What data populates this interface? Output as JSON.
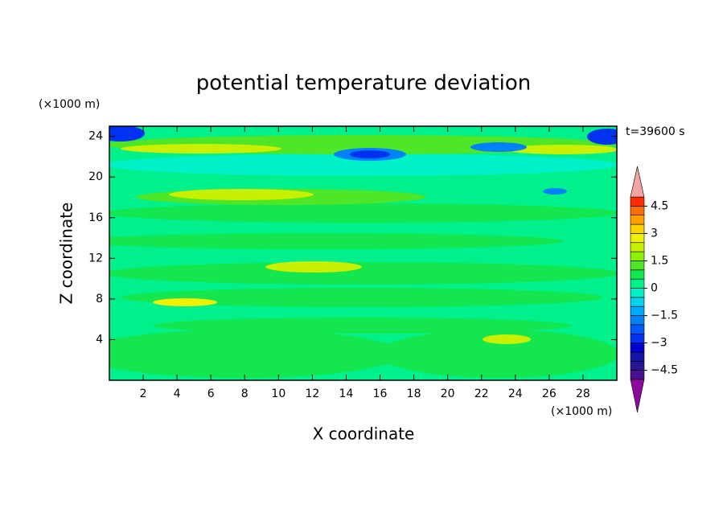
{
  "chart_data": {
    "type": "contour",
    "title": "potential temperature deviation",
    "x_label": "X coordinate",
    "y_label": "Z coordinate",
    "x_unit": "(×1000 m)",
    "y_unit": "(×1000 m)",
    "annotation": "t=39600 s",
    "xlim": [
      0,
      30
    ],
    "xticks": [
      2,
      4,
      6,
      8,
      10,
      12,
      14,
      16,
      18,
      20,
      22,
      24,
      26,
      28
    ],
    "ylim": [
      0,
      25
    ],
    "yticks": [
      4,
      8,
      12,
      16,
      20,
      24
    ],
    "colorbar": {
      "levels": [
        -5,
        -4.5,
        -4,
        -3.5,
        -3,
        -2.5,
        -2,
        -1.5,
        -1,
        -0.5,
        0,
        0.5,
        1,
        1.5,
        2,
        2.5,
        3,
        3.5,
        4,
        4.5,
        5
      ],
      "ticks": [
        {
          "value": -4.5,
          "label": "−4.5"
        },
        {
          "value": -3,
          "label": "−3"
        },
        {
          "value": -1.5,
          "label": "−1.5"
        },
        0,
        1.5,
        3,
        4.5
      ],
      "colors": [
        "#4b0f8c",
        "#2a1496",
        "#1414a8",
        "#0000d2",
        "#0032f0",
        "#005aff",
        "#0082ff",
        "#00aaff",
        "#00d2f0",
        "#00f0c8",
        "#00f08c",
        "#14e650",
        "#50e628",
        "#8cf000",
        "#c8f000",
        "#f0f000",
        "#ffd200",
        "#ffa000",
        "#ff6e00",
        "#ff2d00"
      ],
      "under_color": "#8c0a9b",
      "over_color": "#f4a3a3"
    }
  }
}
